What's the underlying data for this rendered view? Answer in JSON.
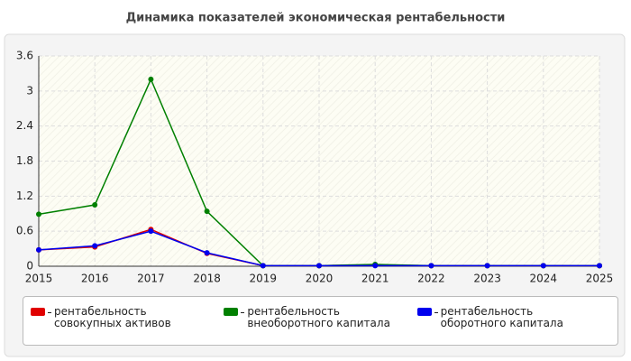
{
  "chart_data": {
    "type": "line",
    "title": "Динамика показателей экономическая рентабельности",
    "x": [
      2015,
      2016,
      2017,
      2018,
      2019,
      2020,
      2021,
      2022,
      2023,
      2024,
      2025
    ],
    "xlim": [
      2015,
      2025
    ],
    "xticks": [
      2015,
      2016,
      2017,
      2018,
      2019,
      2020,
      2021,
      2022,
      2023,
      2024,
      2025
    ],
    "ylim": [
      0,
      3.6
    ],
    "yticks": [
      0,
      0.6,
      1.2,
      1.8,
      2.4,
      3,
      3.6
    ],
    "grid": true,
    "series": [
      {
        "name": "рентабельность совокупных активов",
        "color": "#e00000",
        "values": [
          0.28,
          0.33,
          0.63,
          0.22,
          0.01,
          0.01,
          0.02,
          0.01,
          0.01,
          0.01,
          0.01
        ]
      },
      {
        "name": "рентабельность внеоборотного капитала",
        "color": "#008000",
        "values": [
          0.89,
          1.05,
          3.2,
          0.94,
          0.01,
          0.01,
          0.03,
          0.01,
          0.01,
          0.01,
          0.01
        ]
      },
      {
        "name": "рентабельность оборотного капитала",
        "color": "#0000ee",
        "values": [
          0.28,
          0.35,
          0.6,
          0.23,
          0.01,
          0.01,
          0.01,
          0.01,
          0.01,
          0.01,
          0.01
        ]
      }
    ]
  }
}
